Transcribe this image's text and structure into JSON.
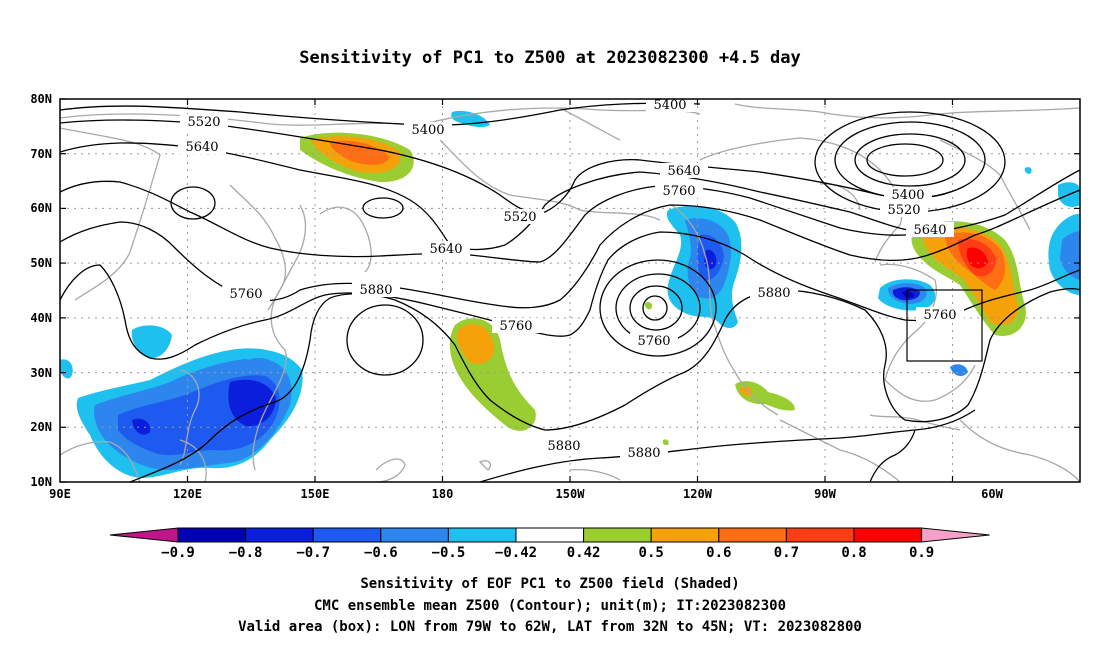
{
  "title": "Sensitivity of PC1 to Z500 at 2023082300 +4.5 day",
  "lat_ticks": [
    "80N",
    "70N",
    "60N",
    "50N",
    "40N",
    "30N",
    "20N",
    "10N"
  ],
  "lon_ticks": [
    "90E",
    "120E",
    "150E",
    "180",
    "150W",
    "120W",
    "90W",
    "60W"
  ],
  "contour_labels": [
    "5400",
    "5520",
    "5640",
    "5760",
    "5880"
  ],
  "colorbar": {
    "ticks": [
      "-0.9",
      "-0.8",
      "-0.7",
      "-0.6",
      "-0.5",
      "-0.42",
      "0.42",
      "0.5",
      "0.6",
      "0.7",
      "0.8",
      "0.9"
    ],
    "colors": [
      "#c0168a",
      "#0000b4",
      "#0a1edc",
      "#1e5af0",
      "#2c86ee",
      "#1ec0f0",
      "#ffffff",
      "#9acd32",
      "#f5a10a",
      "#ff6e14",
      "#ff3c14",
      "#ff0000",
      "#f5a0c8"
    ]
  },
  "footer": {
    "line1": "Sensitivity of EOF PC1 to Z500 field (Shaded)",
    "line2": "CMC ensemble mean Z500 (Contour); unit(m); IT:2023082300",
    "line3": "Valid area (box): LON from 79W to 62W, LAT from 32N to 45N; VT: 2023082800"
  }
}
